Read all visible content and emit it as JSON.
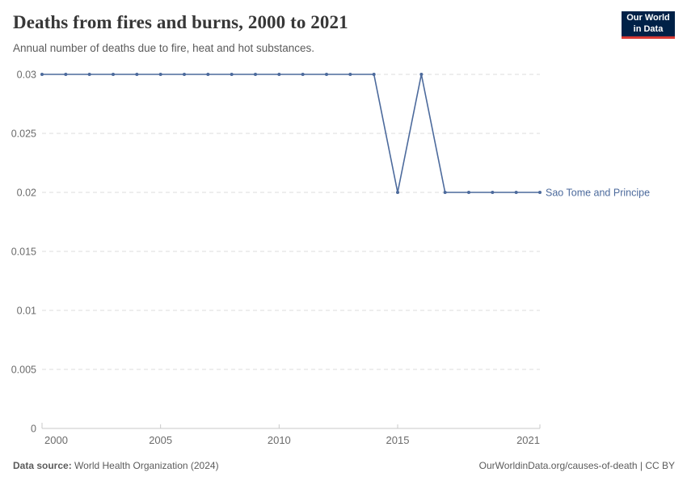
{
  "header": {
    "title": "Deaths from fires and burns, 2000 to 2021",
    "subtitle": "Annual number of deaths due to fire, heat and hot substances.",
    "logo": {
      "line1": "Our World",
      "line2": "in Data"
    }
  },
  "chart_data": {
    "type": "line",
    "title": "Deaths from fires and burns, 2000 to 2021",
    "x": [
      2000,
      2001,
      2002,
      2003,
      2004,
      2005,
      2006,
      2007,
      2008,
      2009,
      2010,
      2011,
      2012,
      2013,
      2014,
      2015,
      2016,
      2017,
      2018,
      2019,
      2020,
      2021
    ],
    "series": [
      {
        "name": "Sao Tome and Principe",
        "color": "#4C6A9C",
        "values": [
          0.03,
          0.03,
          0.03,
          0.03,
          0.03,
          0.03,
          0.03,
          0.03,
          0.03,
          0.03,
          0.03,
          0.03,
          0.03,
          0.03,
          0.03,
          0.02,
          0.03,
          0.02,
          0.02,
          0.02,
          0.02,
          0.02
        ]
      }
    ],
    "xlabel": "",
    "ylabel": "",
    "ylim": [
      0,
      0.03
    ],
    "xlim": [
      2000,
      2021
    ],
    "yticks": [
      0,
      0.005,
      0.01,
      0.015,
      0.02,
      0.025,
      0.03
    ],
    "ytick_labels": [
      "0",
      "0.005",
      "0.01",
      "0.015",
      "0.02",
      "0.025",
      "0.03"
    ],
    "xticks": [
      2000,
      2005,
      2010,
      2015,
      2021
    ],
    "grid": "horizontal-dashed",
    "legend_position": "end-of-line-label",
    "markers": true,
    "colors": {
      "grid": "#dedede",
      "axis": "#c9c9c9",
      "axis_text": "#6b6b6b"
    }
  },
  "footer": {
    "source_label": "Data source:",
    "source_text": " World Health Organization (2024)",
    "link_text": "OurWorldinData.org/causes-of-death | CC BY"
  },
  "colors": {
    "accent_line": "#4C6A9C",
    "logo_bg": "#002147",
    "logo_red": "#d93a34",
    "title_text": "#373737",
    "muted_text": "#5b5b5b"
  }
}
